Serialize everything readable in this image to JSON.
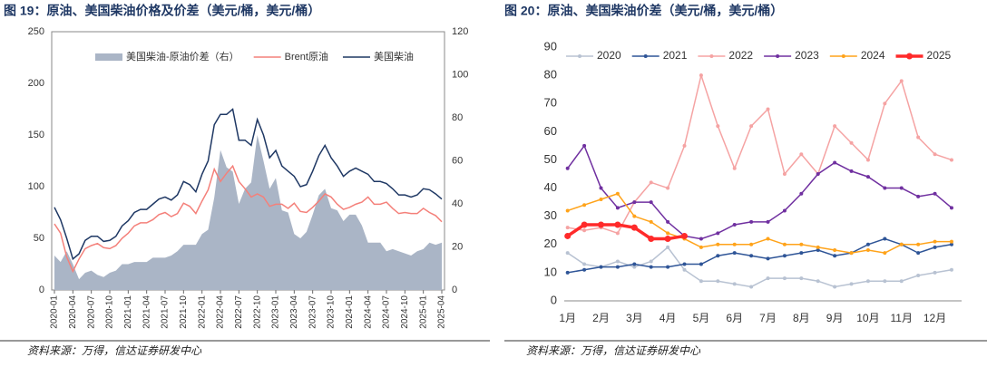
{
  "chart_data": [
    {
      "type": "line",
      "title": "图 19：原油、美国柴油价格及价差（美元/桶，美元/桶）",
      "source": "资料来源：万得，信达证券研发中心",
      "categories": [
        "2020-01",
        null,
        null,
        "2020-04",
        null,
        null,
        "2020-07",
        null,
        null,
        "2020-10",
        null,
        null,
        "2021-01",
        null,
        null,
        "2021-04",
        null,
        null,
        "2021-07",
        null,
        null,
        "2021-10",
        null,
        null,
        "2022-01",
        null,
        null,
        "2022-04",
        null,
        null,
        "2022-07",
        null,
        null,
        "2022-10",
        null,
        null,
        "2023-01",
        null,
        null,
        "2023-04",
        null,
        null,
        "2023-07",
        null,
        null,
        "2023-10",
        null,
        null,
        "2024-01",
        null,
        null,
        "2024-04",
        null,
        null,
        "2024-07",
        null,
        null,
        "2024-10",
        null,
        null,
        "2025-01",
        null,
        null,
        "2025-04"
      ],
      "ylim": [
        0,
        250
      ],
      "yticks": [
        0,
        50,
        100,
        150,
        200,
        250
      ],
      "y2lim": [
        0,
        120
      ],
      "y2ticks": [
        0,
        20,
        40,
        60,
        80,
        100,
        120
      ],
      "grid": false,
      "legend": "top",
      "series": [
        {
          "name": "美国柴油-原油价差（右）",
          "color": "#aab5c6",
          "style": "area",
          "axis": "y2",
          "values": [
            16,
            13,
            18,
            12,
            5,
            8,
            9,
            7,
            6,
            8,
            9,
            12,
            12,
            13,
            13,
            13,
            15,
            15,
            15,
            16,
            18,
            21,
            21,
            21,
            26,
            28,
            43,
            65,
            57,
            55,
            40,
            47,
            50,
            72,
            60,
            47,
            52,
            37,
            36,
            26,
            24,
            27,
            35,
            44,
            47,
            38,
            37,
            32,
            35,
            35,
            30,
            22,
            22,
            22,
            18,
            19,
            18,
            17,
            16,
            18,
            19,
            22,
            21,
            22
          ]
        },
        {
          "name": "Brent原油",
          "color": "#f4807a",
          "style": "line",
          "values": [
            64,
            55,
            32,
            18,
            30,
            40,
            43,
            45,
            41,
            40,
            43,
            50,
            55,
            62,
            65,
            65,
            68,
            73,
            75,
            71,
            74,
            84,
            81,
            74,
            86,
            97,
            117,
            105,
            113,
            120,
            105,
            98,
            90,
            93,
            90,
            81,
            83,
            83,
            79,
            84,
            76,
            75,
            80,
            86,
            93,
            90,
            83,
            78,
            80,
            83,
            85,
            90,
            83,
            83,
            85,
            79,
            74,
            75,
            74,
            74,
            79,
            75,
            72,
            66
          ]
        },
        {
          "name": "美国柴油",
          "color": "#1f3864",
          "style": "line",
          "values": [
            80,
            68,
            50,
            30,
            35,
            48,
            52,
            52,
            47,
            48,
            52,
            62,
            67,
            75,
            78,
            78,
            83,
            88,
            90,
            87,
            92,
            105,
            102,
            95,
            112,
            125,
            160,
            170,
            170,
            175,
            145,
            145,
            140,
            165,
            150,
            128,
            135,
            120,
            115,
            110,
            100,
            102,
            115,
            130,
            140,
            128,
            120,
            110,
            115,
            118,
            115,
            112,
            105,
            105,
            103,
            98,
            92,
            92,
            90,
            92,
            98,
            97,
            93,
            88
          ]
        }
      ]
    },
    {
      "type": "line",
      "title": "图 20：原油、美国柴油价差（美元/桶，美元/桶）",
      "source": "资料来源：万得，信达证券研发中心",
      "x": [
        1,
        1.5,
        2,
        2.5,
        3,
        3.5,
        4,
        4.5,
        5,
        5.5,
        6,
        6.5,
        7,
        7.5,
        8,
        8.5,
        9,
        9.5,
        10,
        10.5,
        11,
        11.5,
        12,
        12.5
      ],
      "xlim": [
        0.9,
        12.8
      ],
      "xticks": [
        {
          "value": 1,
          "label": "1月"
        },
        {
          "value": 2,
          "label": "2月"
        },
        {
          "value": 3,
          "label": "3月"
        },
        {
          "value": 4,
          "label": "4月"
        },
        {
          "value": 5,
          "label": "5月"
        },
        {
          "value": 6,
          "label": "6月"
        },
        {
          "value": 7,
          "label": "7月"
        },
        {
          "value": 8,
          "label": "8月"
        },
        {
          "value": 9,
          "label": "9月"
        },
        {
          "value": 10,
          "label": "10月"
        },
        {
          "value": 11,
          "label": "11月"
        },
        {
          "value": 12,
          "label": "12月"
        }
      ],
      "ylim": [
        0,
        90
      ],
      "yticks": [
        0,
        10,
        20,
        30,
        40,
        50,
        60,
        70,
        80,
        90
      ],
      "grid": false,
      "legend": "top",
      "markers": true,
      "series": [
        {
          "name": "2020",
          "color": "#b8c2d2",
          "values": [
            17,
            13,
            12,
            14,
            12,
            14,
            19,
            11,
            7,
            7,
            6,
            5,
            8,
            8,
            8,
            7,
            5,
            6,
            7,
            7,
            7,
            9,
            10,
            11
          ]
        },
        {
          "name": "2021",
          "color": "#2f5597",
          "values": [
            10,
            11,
            12,
            12,
            13,
            12,
            12,
            13,
            13,
            16,
            17,
            16,
            15,
            16,
            17,
            18,
            16,
            17,
            20,
            22,
            20,
            17,
            19,
            20
          ]
        },
        {
          "name": "2022",
          "color": "#f5a3a3",
          "values": [
            26,
            25,
            26,
            24,
            35,
            42,
            40,
            55,
            80,
            62,
            47,
            62,
            68,
            45,
            52,
            45,
            62,
            56,
            50,
            70,
            78,
            58,
            52,
            50
          ]
        },
        {
          "name": "2023",
          "color": "#7030a0",
          "values": [
            47,
            55,
            40,
            33,
            35,
            35,
            28,
            23,
            22,
            24,
            27,
            28,
            28,
            32,
            38,
            45,
            49,
            46,
            44,
            40,
            40,
            37,
            38,
            33
          ]
        },
        {
          "name": "2024",
          "color": "#ffa31a",
          "values": [
            32,
            34,
            36,
            38,
            30,
            28,
            24,
            22,
            19,
            20,
            20,
            20,
            22,
            20,
            20,
            19,
            18,
            17,
            18,
            17,
            20,
            20,
            21,
            21
          ]
        },
        {
          "name": "2025",
          "color": "#ff2a2a",
          "values": [
            23,
            27,
            27,
            27,
            26,
            22,
            22,
            23,
            null,
            null,
            null,
            null,
            null,
            null,
            null,
            null,
            null,
            null,
            null,
            null,
            null,
            null,
            null,
            null
          ]
        }
      ]
    }
  ]
}
